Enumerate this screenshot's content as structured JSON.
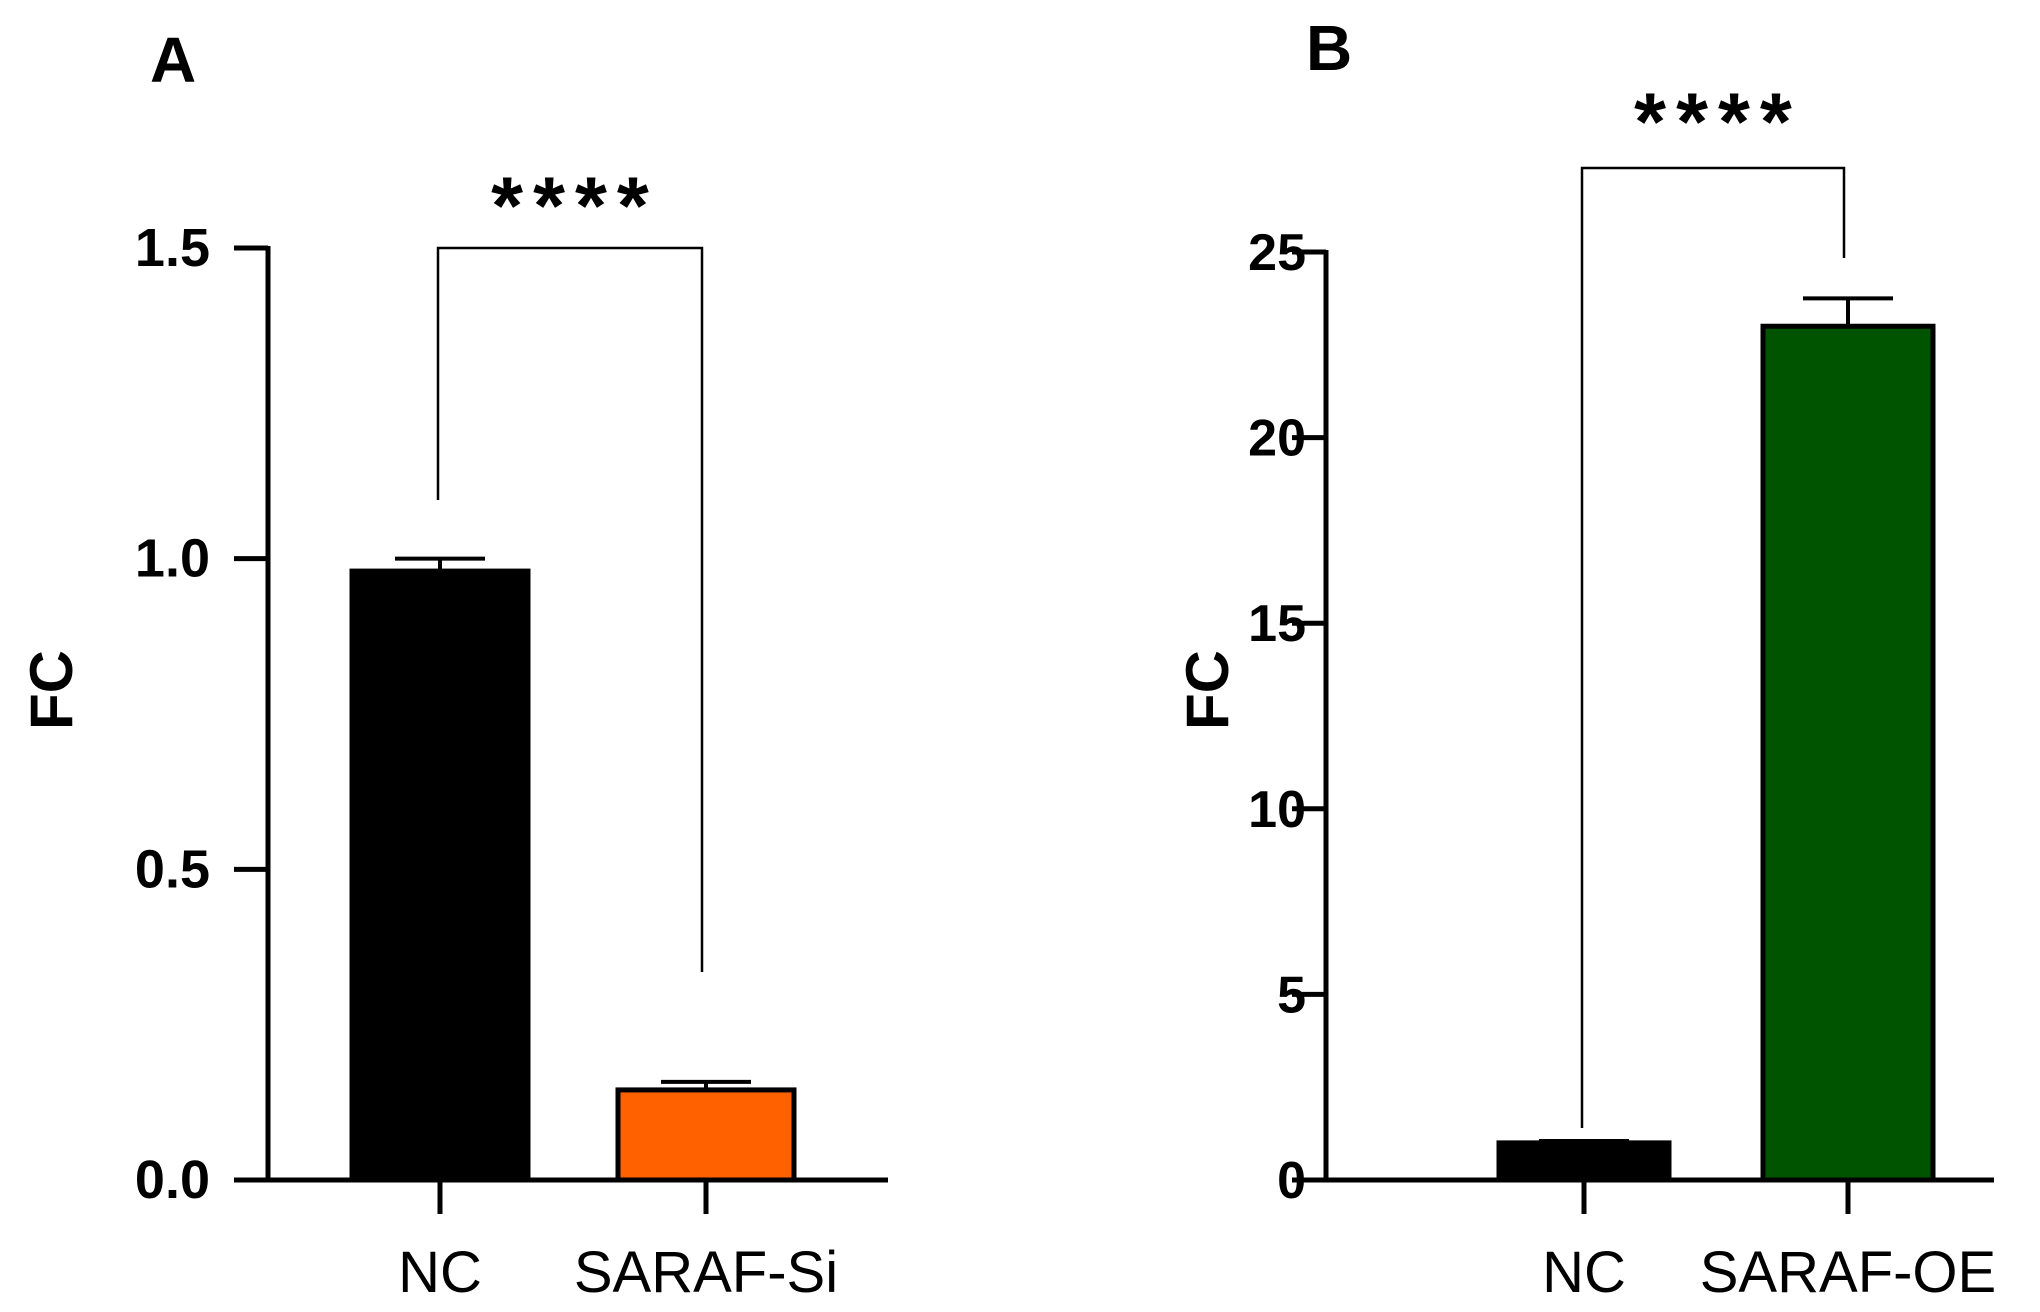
{
  "panels": [
    {
      "letter": "A",
      "significance": "****",
      "chart_data": {
        "type": "bar",
        "categories": [
          "NC",
          "SARAF-Si"
        ],
        "values": [
          0.98,
          0.145
        ],
        "errors": [
          0.02,
          0.013
        ],
        "colors": [
          "#000000",
          "#ff6000"
        ],
        "title": "",
        "xlabel": "",
        "ylabel": "FC",
        "ylim": [
          0,
          1.5
        ],
        "yticks": [
          0,
          0.5,
          1.0,
          1.5
        ],
        "ytick_labels": [
          "0.0",
          "0.5",
          "1.0",
          "1.5"
        ],
        "grid": false,
        "legend": "none"
      }
    },
    {
      "letter": "B",
      "significance": "****",
      "chart_data": {
        "type": "bar",
        "categories": [
          "NC",
          "SARAF-OE"
        ],
        "values": [
          1,
          23
        ],
        "errors": [
          0.05,
          0.75
        ],
        "colors": [
          "#000000",
          "#005400"
        ],
        "title": "",
        "xlabel": "",
        "ylabel": "FC",
        "ylim": [
          0,
          25
        ],
        "yticks": [
          0,
          5,
          10,
          15,
          20,
          25
        ],
        "ytick_labels": [
          "0",
          "5",
          "10",
          "15",
          "20",
          "25"
        ],
        "grid": false,
        "legend": "none"
      }
    }
  ]
}
